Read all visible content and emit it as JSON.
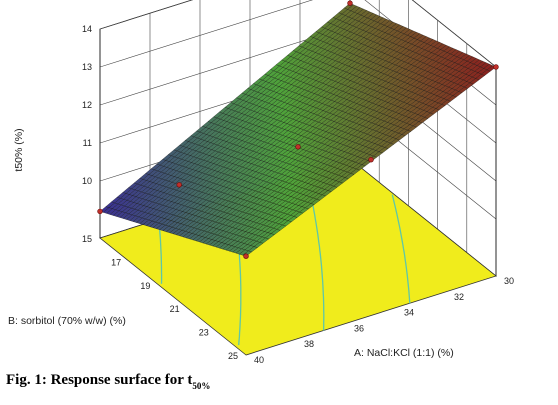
{
  "caption": {
    "prefix": "Fig. 1: Response surface for t",
    "subscript": "50%"
  },
  "chart_data": {
    "type": "surface",
    "zlabel": "t50% (%)",
    "xlabel": "A: NaCl:KCl (1:1) (%)",
    "ylabel": "B: sorbitol (70% w/w) (%)",
    "x_ticks": [
      "30",
      "32",
      "34",
      "36",
      "38",
      "40"
    ],
    "y_ticks": [
      "15",
      "17",
      "19",
      "21",
      "23",
      "25"
    ],
    "z_ticks": [
      "10",
      "11",
      "12",
      "13",
      "14"
    ],
    "xlim": [
      30,
      40
    ],
    "ylim": [
      15,
      25
    ],
    "zlim": [
      9,
      14
    ],
    "corners": [
      {
        "x": 30,
        "y": 15,
        "z": 12.6
      },
      {
        "x": 30,
        "y": 25,
        "z": 14.0
      },
      {
        "x": 40,
        "y": 15,
        "z": 9.2
      },
      {
        "x": 40,
        "y": 25,
        "z": 11.1
      }
    ],
    "design_points": [
      {
        "x": 30,
        "y": 15,
        "z": 12.6
      },
      {
        "x": 30,
        "y": 25,
        "z": 14.0
      },
      {
        "x": 40,
        "y": 25,
        "z": 11.1
      },
      {
        "x": 40,
        "y": 15,
        "z": 9.2
      },
      {
        "x": 35,
        "y": 25,
        "z": 12.6
      },
      {
        "x": 35,
        "y": 20,
        "z": 11.4
      },
      {
        "x": 38,
        "y": 17,
        "z": 10.1
      }
    ],
    "colors": {
      "floor": "#f0ec1c",
      "contour": "#5ec7a8",
      "low": "#3a2d94",
      "mid": "#4fa33a",
      "high": "#8c1e1e"
    }
  }
}
